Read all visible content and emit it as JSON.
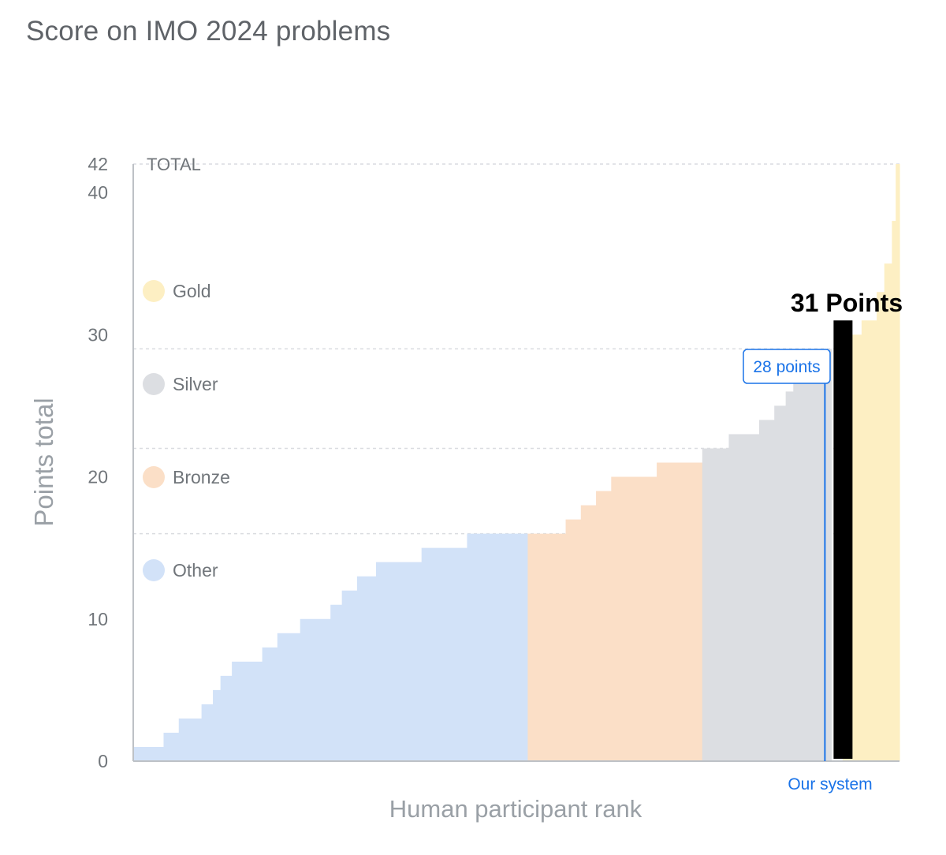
{
  "title": "Score on IMO 2024 problems",
  "chart_data": {
    "type": "bar",
    "title": "Score on IMO 2024 problems",
    "xlabel": "Human participant rank",
    "ylabel": "Points total",
    "ylim": [
      0,
      42
    ],
    "yticks": [
      0,
      10,
      20,
      30,
      40,
      42
    ],
    "total_label": "TOTAL",
    "thresholds": [
      {
        "name": "Bronze cutoff",
        "value": 16
      },
      {
        "name": "Silver cutoff",
        "value": 22
      },
      {
        "name": "Gold cutoff",
        "value": 29
      },
      {
        "name": "Maximum",
        "value": 42
      }
    ],
    "legend": [
      {
        "label": "Gold",
        "color": "#fdefc3"
      },
      {
        "label": "Silver",
        "color": "#dcdee2"
      },
      {
        "label": "Bronze",
        "color": "#fbdfc7"
      },
      {
        "label": "Other",
        "color": "#d2e2f8"
      }
    ],
    "participant_steps": [
      {
        "count": 4,
        "value": 1,
        "medal": "Other"
      },
      {
        "count": 2,
        "value": 2,
        "medal": "Other"
      },
      {
        "count": 3,
        "value": 3,
        "medal": "Other"
      },
      {
        "count": 1.5,
        "value": 4,
        "medal": "Other"
      },
      {
        "count": 1,
        "value": 5,
        "medal": "Other"
      },
      {
        "count": 1.5,
        "value": 6,
        "medal": "Other"
      },
      {
        "count": 4,
        "value": 7,
        "medal": "Other"
      },
      {
        "count": 2,
        "value": 8,
        "medal": "Other"
      },
      {
        "count": 3,
        "value": 9,
        "medal": "Other"
      },
      {
        "count": 4,
        "value": 10,
        "medal": "Other"
      },
      {
        "count": 1.5,
        "value": 11,
        "medal": "Other"
      },
      {
        "count": 2,
        "value": 12,
        "medal": "Other"
      },
      {
        "count": 2.5,
        "value": 13,
        "medal": "Other"
      },
      {
        "count": 6,
        "value": 14,
        "medal": "Other"
      },
      {
        "count": 6,
        "value": 15,
        "medal": "Other"
      },
      {
        "count": 8,
        "value": 16,
        "medal": "Other"
      },
      {
        "count": 5,
        "value": 16,
        "medal": "Bronze"
      },
      {
        "count": 2,
        "value": 17,
        "medal": "Bronze"
      },
      {
        "count": 2,
        "value": 18,
        "medal": "Bronze"
      },
      {
        "count": 2,
        "value": 19,
        "medal": "Bronze"
      },
      {
        "count": 6,
        "value": 20,
        "medal": "Bronze"
      },
      {
        "count": 6,
        "value": 21,
        "medal": "Bronze"
      },
      {
        "count": 3.5,
        "value": 22,
        "medal": "Silver"
      },
      {
        "count": 4,
        "value": 23,
        "medal": "Silver"
      },
      {
        "count": 2,
        "value": 24,
        "medal": "Silver"
      },
      {
        "count": 1.5,
        "value": 25,
        "medal": "Silver"
      },
      {
        "count": 1,
        "value": 26,
        "medal": "Silver"
      },
      {
        "count": 3,
        "value": 27,
        "medal": "Silver"
      },
      {
        "count": 1,
        "value": 28,
        "medal": "Silver"
      },
      {
        "count": 1,
        "value": 29,
        "medal": "Silver"
      },
      {
        "count": 2.5,
        "value": 30,
        "medal": "Gold"
      },
      {
        "count": 2,
        "value": 31,
        "medal": "Gold"
      },
      {
        "count": 1,
        "value": 33,
        "medal": "Gold"
      },
      {
        "count": 1,
        "value": 35,
        "medal": "Gold"
      },
      {
        "count": 0.5,
        "value": 38,
        "medal": "Gold"
      },
      {
        "count": 0.5,
        "value": 42,
        "medal": "Gold"
      }
    ],
    "system": {
      "name": "Our system",
      "value": 28,
      "label": "28 points"
    },
    "highlight": {
      "value": 31,
      "label": "31 Points",
      "color": "#000000"
    },
    "colors": {
      "axis": "#bdc1c6",
      "grid": "#dadce0",
      "text": "#70757a",
      "system": "#1a73e8"
    }
  }
}
